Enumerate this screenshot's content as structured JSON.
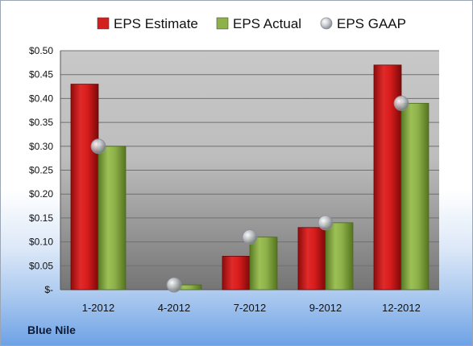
{
  "company": "Blue Nile",
  "colors": {
    "estimate": "#d41f1f",
    "actual": "#8fb14a",
    "gaap": "#b8bcc4"
  },
  "chart_data": {
    "type": "bar",
    "categories": [
      "1-2012",
      "4-2012",
      "7-2012",
      "9-2012",
      "12-2012"
    ],
    "series": [
      {
        "name": "EPS Estimate",
        "type": "bar",
        "values": [
          0.43,
          0.0,
          0.07,
          0.13,
          0.47
        ]
      },
      {
        "name": "EPS Actual",
        "type": "bar",
        "values": [
          0.3,
          0.01,
          0.11,
          0.14,
          0.39
        ]
      },
      {
        "name": "EPS GAAP",
        "type": "scatter",
        "values": [
          0.3,
          0.01,
          0.11,
          0.14,
          0.39
        ]
      }
    ],
    "ylim": [
      0,
      0.5
    ],
    "yticks": [
      0,
      0.05,
      0.1,
      0.15,
      0.2,
      0.25,
      0.3,
      0.35,
      0.4,
      0.45,
      0.5
    ],
    "ytick_labels": [
      "$-",
      "$0.05",
      "$0.10",
      "$0.15",
      "$0.20",
      "$0.25",
      "$0.30",
      "$0.35",
      "$0.40",
      "$0.45",
      "$0.50"
    ],
    "legend_position": "top",
    "grid": true
  }
}
